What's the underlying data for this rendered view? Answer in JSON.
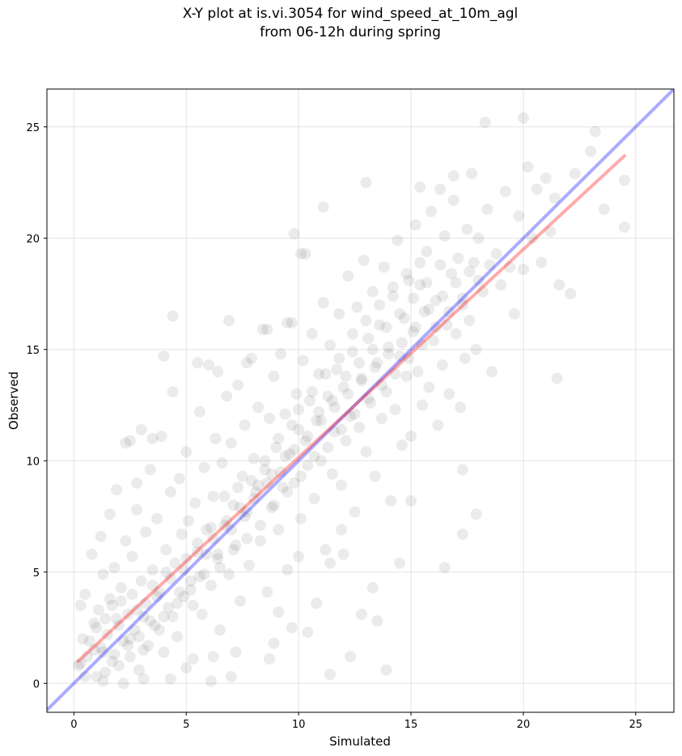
{
  "chart_data": {
    "type": "scatter",
    "title_line1": "X-Y plot at is.vi.3054 for wind_speed_at_10m_agl",
    "title_line2": "from 06-12h during spring",
    "xlabel": "Simulated",
    "ylabel": "Observed",
    "xlim": [
      -1.2,
      26.7
    ],
    "ylim": [
      -1.3,
      26.7
    ],
    "xticks": [
      0,
      5,
      10,
      15,
      20,
      25
    ],
    "yticks": [
      0,
      5,
      10,
      15,
      20,
      25
    ],
    "grid": true,
    "point_color": "#000000",
    "point_opacity": 0.08,
    "reference_line": {
      "color": "#0000ff",
      "opacity": 0.33,
      "from": [
        -1.2,
        -1.2
      ],
      "to": [
        26.7,
        26.7
      ]
    },
    "fit_line": {
      "color": "#ff0000",
      "opacity": 0.33,
      "from": [
        0.2,
        1.0
      ],
      "to": [
        24.5,
        23.7
      ]
    },
    "points": [
      [
        0.2,
        0.8
      ],
      [
        0.3,
        3.5
      ],
      [
        0.5,
        4.0
      ],
      [
        0.4,
        2.0
      ],
      [
        0.6,
        1.2
      ],
      [
        0.8,
        5.8
      ],
      [
        0.9,
        2.7
      ],
      [
        1.0,
        0.3
      ],
      [
        1.1,
        3.3
      ],
      [
        1.2,
        1.6
      ],
      [
        1.3,
        4.9
      ],
      [
        1.4,
        0.5
      ],
      [
        1.5,
        2.2
      ],
      [
        1.6,
        3.8
      ],
      [
        1.7,
        1.0
      ],
      [
        1.8,
        5.2
      ],
      [
        1.9,
        2.9
      ],
      [
        2.0,
        0.8
      ],
      [
        2.1,
        4.3
      ],
      [
        2.2,
        1.9
      ],
      [
        2.3,
        6.4
      ],
      [
        2.4,
        3.1
      ],
      [
        2.5,
        1.2
      ],
      [
        2.6,
        5.7
      ],
      [
        2.7,
        2.4
      ],
      [
        2.8,
        7.8
      ],
      [
        2.9,
        0.6
      ],
      [
        3.0,
        4.6
      ],
      [
        3.1,
        3.0
      ],
      [
        3.2,
        6.8
      ],
      [
        3.3,
        1.7
      ],
      [
        3.4,
        9.6
      ],
      [
        3.5,
        5.1
      ],
      [
        3.6,
        2.6
      ],
      [
        3.7,
        7.4
      ],
      [
        3.8,
        4.1
      ],
      [
        3.9,
        11.1
      ],
      [
        4.0,
        1.4
      ],
      [
        4.1,
        6.0
      ],
      [
        4.2,
        3.4
      ],
      [
        4.3,
        8.6
      ],
      [
        4.4,
        13.1
      ],
      [
        4.5,
        5.4
      ],
      [
        4.6,
        2.1
      ],
      [
        4.7,
        9.2
      ],
      [
        4.8,
        6.7
      ],
      [
        4.9,
        3.9
      ],
      [
        5.0,
        10.4
      ],
      [
        5.1,
        7.3
      ],
      [
        5.2,
        4.6
      ],
      [
        5.3,
        1.1
      ],
      [
        5.4,
        8.1
      ],
      [
        5.5,
        5.9
      ],
      [
        5.6,
        12.2
      ],
      [
        5.7,
        3.1
      ],
      [
        5.8,
        9.7
      ],
      [
        5.9,
        6.9
      ],
      [
        6.0,
        14.3
      ],
      [
        6.1,
        4.4
      ],
      [
        6.2,
        8.4
      ],
      [
        6.3,
        11.0
      ],
      [
        6.4,
        5.6
      ],
      [
        6.5,
        2.4
      ],
      [
        6.6,
        9.9
      ],
      [
        6.7,
        7.1
      ],
      [
        6.8,
        12.9
      ],
      [
        6.9,
        4.9
      ],
      [
        7.0,
        10.8
      ],
      [
        7.1,
        8.0
      ],
      [
        7.2,
        6.2
      ],
      [
        7.3,
        13.4
      ],
      [
        7.4,
        3.7
      ],
      [
        7.5,
        9.3
      ],
      [
        7.6,
        11.6
      ],
      [
        7.7,
        7.7
      ],
      [
        7.8,
        5.3
      ],
      [
        7.9,
        14.6
      ],
      [
        8.0,
        10.1
      ],
      [
        8.1,
        8.6
      ],
      [
        8.2,
        12.4
      ],
      [
        8.3,
        6.4
      ],
      [
        8.4,
        15.9
      ],
      [
        8.5,
        9.6
      ],
      [
        8.6,
        4.1
      ],
      [
        8.7,
        11.9
      ],
      [
        8.8,
        7.9
      ],
      [
        8.9,
        13.8
      ],
      [
        9.0,
        10.6
      ],
      [
        9.1,
        6.9
      ],
      [
        9.2,
        14.8
      ],
      [
        9.3,
        8.8
      ],
      [
        9.4,
        12.1
      ],
      [
        9.5,
        5.1
      ],
      [
        9.6,
        10.3
      ],
      [
        9.7,
        16.2
      ],
      [
        9.8,
        9.0
      ],
      [
        9.9,
        13.0
      ],
      [
        10.0,
        11.4
      ],
      [
        10.1,
        7.4
      ],
      [
        10.2,
        14.5
      ],
      [
        10.3,
        19.3
      ],
      [
        10.4,
        9.8
      ],
      [
        10.5,
        12.7
      ],
      [
        10.6,
        15.7
      ],
      [
        10.7,
        8.3
      ],
      [
        10.8,
        11.8
      ],
      [
        10.9,
        13.9
      ],
      [
        11.0,
        10.0
      ],
      [
        11.1,
        17.1
      ],
      [
        11.2,
        6.0
      ],
      [
        11.3,
        12.9
      ],
      [
        11.4,
        15.2
      ],
      [
        11.5,
        9.4
      ],
      [
        11.6,
        11.3
      ],
      [
        11.7,
        14.1
      ],
      [
        11.8,
        16.6
      ],
      [
        11.9,
        8.9
      ],
      [
        12.0,
        13.3
      ],
      [
        12.1,
        10.9
      ],
      [
        12.2,
        18.3
      ],
      [
        12.3,
        12.0
      ],
      [
        12.4,
        14.9
      ],
      [
        12.5,
        7.7
      ],
      [
        12.6,
        16.9
      ],
      [
        12.7,
        11.5
      ],
      [
        12.8,
        13.6
      ],
      [
        12.9,
        19.0
      ],
      [
        13.0,
        10.4
      ],
      [
        13.1,
        15.5
      ],
      [
        13.2,
        12.6
      ],
      [
        13.3,
        17.6
      ],
      [
        13.4,
        9.3
      ],
      [
        13.5,
        14.4
      ],
      [
        13.6,
        16.1
      ],
      [
        13.7,
        11.9
      ],
      [
        13.8,
        18.7
      ],
      [
        13.9,
        13.1
      ],
      [
        14.0,
        15.1
      ],
      [
        14.1,
        8.2
      ],
      [
        14.2,
        17.4
      ],
      [
        14.3,
        12.3
      ],
      [
        14.4,
        19.9
      ],
      [
        14.5,
        14.7
      ],
      [
        14.6,
        10.7
      ],
      [
        14.7,
        16.4
      ],
      [
        14.8,
        13.8
      ],
      [
        14.9,
        18.1
      ],
      [
        15.0,
        11.1
      ],
      [
        15.1,
        15.8
      ],
      [
        15.2,
        20.6
      ],
      [
        15.3,
        14.0
      ],
      [
        15.4,
        17.9
      ],
      [
        15.5,
        12.5
      ],
      [
        15.6,
        16.7
      ],
      [
        15.7,
        19.4
      ],
      [
        15.8,
        13.3
      ],
      [
        15.9,
        21.2
      ],
      [
        16.0,
        15.4
      ],
      [
        16.1,
        17.2
      ],
      [
        16.2,
        11.6
      ],
      [
        16.3,
        18.8
      ],
      [
        16.4,
        14.3
      ],
      [
        16.5,
        20.1
      ],
      [
        16.6,
        16.1
      ],
      [
        16.7,
        13.0
      ],
      [
        16.8,
        18.4
      ],
      [
        16.9,
        21.7
      ],
      [
        17.0,
        15.7
      ],
      [
        17.1,
        19.1
      ],
      [
        17.2,
        12.4
      ],
      [
        17.3,
        17.0
      ],
      [
        17.4,
        14.6
      ],
      [
        17.5,
        20.4
      ],
      [
        17.6,
        16.3
      ],
      [
        17.7,
        22.9
      ],
      [
        17.8,
        18.9
      ],
      [
        17.9,
        15.0
      ],
      [
        18.0,
        20.0
      ],
      [
        18.2,
        17.6
      ],
      [
        18.4,
        21.3
      ],
      [
        18.6,
        14.0
      ],
      [
        18.8,
        19.3
      ],
      [
        19.0,
        17.9
      ],
      [
        19.2,
        22.1
      ],
      [
        19.4,
        18.7
      ],
      [
        19.6,
        16.6
      ],
      [
        19.8,
        21.0
      ],
      [
        20.0,
        18.6
      ],
      [
        20.2,
        23.2
      ],
      [
        20.4,
        20.0
      ],
      [
        20.6,
        22.2
      ],
      [
        20.8,
        18.9
      ],
      [
        21.0,
        22.7
      ],
      [
        21.2,
        20.3
      ],
      [
        21.4,
        21.8
      ],
      [
        21.6,
        17.9
      ],
      [
        22.1,
        17.5
      ],
      [
        22.3,
        22.9
      ],
      [
        23.0,
        23.9
      ],
      [
        23.2,
        24.8
      ],
      [
        23.6,
        21.3
      ],
      [
        24.5,
        22.6
      ],
      [
        24.5,
        20.5
      ],
      [
        18.3,
        25.2
      ],
      [
        20.0,
        25.4
      ],
      [
        21.5,
        13.7
      ],
      [
        17.9,
        7.6
      ],
      [
        17.3,
        6.7
      ],
      [
        16.5,
        5.2
      ],
      [
        17.3,
        9.6
      ],
      [
        13.5,
        2.8
      ],
      [
        13.9,
        0.6
      ],
      [
        11.4,
        0.4
      ],
      [
        12.3,
        1.2
      ],
      [
        4.4,
        16.5
      ],
      [
        4.0,
        14.7
      ],
      [
        9.8,
        20.2
      ],
      [
        10.1,
        19.3
      ],
      [
        11.1,
        21.4
      ],
      [
        13.0,
        22.5
      ],
      [
        15.4,
        22.3
      ],
      [
        16.3,
        22.2
      ],
      [
        16.9,
        22.8
      ],
      [
        15.0,
        8.2
      ],
      [
        14.5,
        5.4
      ],
      [
        13.3,
        4.3
      ],
      [
        12.8,
        3.1
      ],
      [
        10.4,
        2.3
      ],
      [
        9.7,
        2.5
      ],
      [
        10.8,
        3.6
      ],
      [
        6.1,
        0.1
      ],
      [
        7.0,
        0.3
      ],
      [
        2.3,
        10.8
      ],
      [
        2.5,
        10.9
      ],
      [
        3.5,
        11.0
      ],
      [
        3.0,
        11.4
      ],
      [
        2.8,
        9.0
      ],
      [
        1.9,
        8.7
      ],
      [
        1.6,
        7.6
      ],
      [
        1.2,
        6.6
      ],
      [
        5.5,
        14.4
      ],
      [
        6.4,
        14.0
      ],
      [
        7.7,
        14.4
      ],
      [
        6.9,
        16.3
      ],
      [
        8.6,
        15.9
      ],
      [
        9.5,
        16.2
      ],
      [
        11.9,
        6.9
      ],
      [
        12.0,
        5.8
      ],
      [
        11.4,
        5.4
      ],
      [
        10.0,
        5.7
      ],
      [
        9.1,
        3.2
      ],
      [
        8.9,
        1.8
      ],
      [
        8.7,
        1.1
      ],
      [
        7.2,
        1.4
      ],
      [
        6.2,
        1.2
      ],
      [
        5.0,
        0.7
      ],
      [
        4.3,
        0.2
      ],
      [
        3.1,
        0.2
      ],
      [
        2.2,
        0.0
      ],
      [
        1.3,
        0.1
      ],
      [
        0.3,
        0.9
      ],
      [
        0.7,
        1.9
      ],
      [
        1.0,
        2.5
      ],
      [
        1.3,
        1.4
      ],
      [
        1.7,
        3.5
      ],
      [
        2.0,
        2.6
      ],
      [
        2.4,
        1.7
      ],
      [
        2.6,
        4.0
      ],
      [
        2.9,
        2.1
      ],
      [
        3.2,
        3.6
      ],
      [
        3.5,
        4.4
      ],
      [
        3.8,
        2.4
      ],
      [
        4.1,
        5.0
      ],
      [
        4.4,
        3.0
      ],
      [
        4.7,
        4.1
      ],
      [
        5.0,
        5.6
      ],
      [
        5.3,
        3.5
      ],
      [
        5.6,
        4.8
      ],
      [
        5.9,
        5.8
      ],
      [
        6.2,
        6.5
      ],
      [
        6.5,
        5.2
      ],
      [
        6.8,
        7.3
      ],
      [
        7.1,
        6.0
      ],
      [
        7.4,
        7.9
      ],
      [
        7.7,
        6.5
      ],
      [
        8.0,
        8.3
      ],
      [
        8.3,
        7.1
      ],
      [
        8.6,
        9.0
      ],
      [
        8.9,
        8.0
      ],
      [
        9.2,
        9.5
      ],
      [
        9.5,
        8.6
      ],
      [
        9.8,
        10.5
      ],
      [
        10.1,
        9.3
      ],
      [
        10.4,
        11.1
      ],
      [
        10.7,
        10.2
      ],
      [
        11.0,
        11.8
      ],
      [
        11.3,
        10.6
      ],
      [
        11.6,
        12.4
      ],
      [
        11.9,
        11.4
      ],
      [
        12.2,
        13.0
      ],
      [
        12.5,
        12.1
      ],
      [
        12.8,
        13.7
      ],
      [
        13.1,
        12.8
      ],
      [
        13.4,
        14.2
      ],
      [
        13.7,
        13.4
      ],
      [
        14.0,
        14.8
      ],
      [
        14.3,
        13.9
      ],
      [
        14.6,
        15.3
      ],
      [
        14.9,
        14.6
      ],
      [
        15.2,
        16.0
      ],
      [
        15.5,
        15.2
      ],
      [
        15.8,
        16.8
      ],
      [
        16.1,
        16.0
      ],
      [
        16.4,
        17.4
      ],
      [
        16.7,
        16.7
      ],
      [
        17.0,
        18.0
      ],
      [
        17.3,
        17.3
      ],
      [
        17.6,
        18.5
      ],
      [
        18.0,
        18.1
      ],
      [
        18.5,
        18.8
      ],
      [
        0.5,
        0.3
      ],
      [
        0.9,
        1.5
      ],
      [
        1.4,
        2.9
      ],
      [
        1.8,
        1.3
      ],
      [
        2.1,
        3.7
      ],
      [
        2.5,
        2.0
      ],
      [
        2.8,
        3.3
      ],
      [
        3.1,
        1.5
      ],
      [
        3.4,
        2.8
      ],
      [
        3.7,
        3.9
      ],
      [
        4.0,
        3.0
      ],
      [
        4.3,
        4.7
      ],
      [
        4.6,
        3.6
      ],
      [
        4.9,
        5.1
      ],
      [
        5.2,
        4.2
      ],
      [
        5.5,
        6.3
      ],
      [
        5.8,
        4.9
      ],
      [
        6.1,
        7.0
      ],
      [
        6.4,
        5.8
      ],
      [
        6.7,
        8.4
      ],
      [
        7.0,
        6.9
      ],
      [
        7.3,
        8.8
      ],
      [
        7.6,
        7.5
      ],
      [
        7.9,
        9.1
      ],
      [
        8.2,
        8.9
      ],
      [
        8.5,
        10.0
      ],
      [
        8.8,
        9.4
      ],
      [
        9.1,
        11.0
      ],
      [
        9.4,
        10.2
      ],
      [
        9.7,
        11.6
      ],
      [
        10.0,
        12.3
      ],
      [
        10.3,
        10.9
      ],
      [
        10.6,
        13.1
      ],
      [
        10.9,
        12.2
      ],
      [
        11.2,
        13.9
      ],
      [
        11.5,
        12.7
      ],
      [
        11.8,
        14.6
      ],
      [
        12.1,
        13.8
      ],
      [
        12.4,
        15.7
      ],
      [
        12.7,
        14.4
      ],
      [
        13.0,
        16.3
      ],
      [
        13.3,
        15.0
      ],
      [
        13.6,
        17.0
      ],
      [
        13.9,
        16.0
      ],
      [
        14.2,
        17.8
      ],
      [
        14.5,
        16.6
      ],
      [
        14.8,
        18.4
      ],
      [
        15.1,
        17.3
      ],
      [
        15.4,
        18.9
      ],
      [
        15.7,
        18.0
      ]
    ]
  }
}
